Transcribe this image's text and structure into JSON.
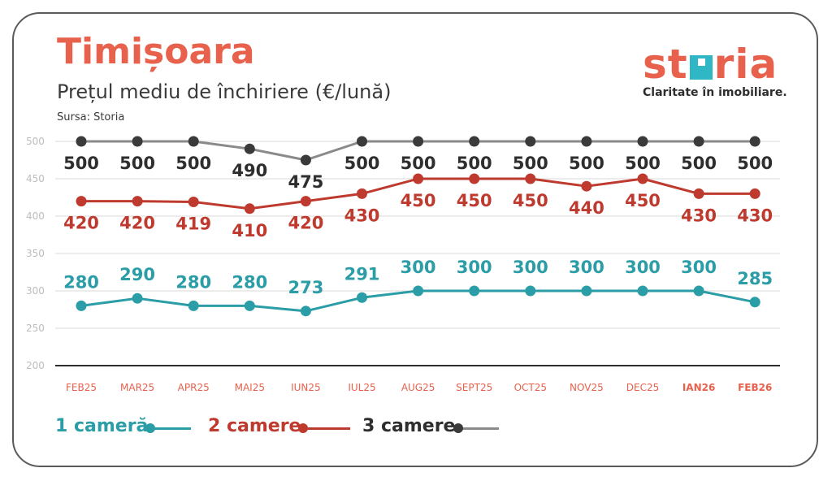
{
  "header": {
    "title": "Timișoara",
    "subtitle": "Prețul mediu de închiriere (€/lună)",
    "source": "Sursa: Storia"
  },
  "logo": {
    "word_start": "st",
    "word_end": "ria",
    "tagline": "Claritate în imobiliare."
  },
  "colors": {
    "title": "#e8614c",
    "one_room": "#2a9da6",
    "two_rooms": "#bf3a2e",
    "three_rooms_line": "#8a8a8a",
    "three_rooms_marker": "#3a3a3a",
    "three_rooms_label": "#2e2e2e",
    "axis_label": "#e8614c",
    "grid": "#d9d9d9"
  },
  "chart_data": {
    "type": "line",
    "categories": [
      "FEB25",
      "MAR25",
      "APR25",
      "MAI25",
      "IUN25",
      "IUL25",
      "AUG25",
      "SEPT25",
      "OCT25",
      "NOV25",
      "DEC25",
      "IAN26",
      "FEB26"
    ],
    "bold_categories": [
      "IAN26",
      "FEB26"
    ],
    "y_ticks": [
      200,
      250,
      300,
      350,
      400,
      450,
      500
    ],
    "ylim": [
      200,
      500
    ],
    "grid": true,
    "legend_position": "bottom-left",
    "series": [
      {
        "name": "1 cameră",
        "values": [
          280,
          290,
          280,
          280,
          273,
          291,
          300,
          300,
          300,
          300,
          300,
          300,
          285
        ],
        "color": "#2a9da6",
        "labels_above": true
      },
      {
        "name": "2 camere",
        "values": [
          420,
          420,
          419,
          410,
          420,
          430,
          450,
          450,
          450,
          440,
          450,
          430,
          430
        ],
        "color": "#bf3a2e",
        "labels_above": false
      },
      {
        "name": "3 camere",
        "values": [
          500,
          500,
          500,
          490,
          475,
          500,
          500,
          500,
          500,
          500,
          500,
          500,
          500
        ],
        "color": "#8a8a8a",
        "labels_above": false
      }
    ]
  }
}
